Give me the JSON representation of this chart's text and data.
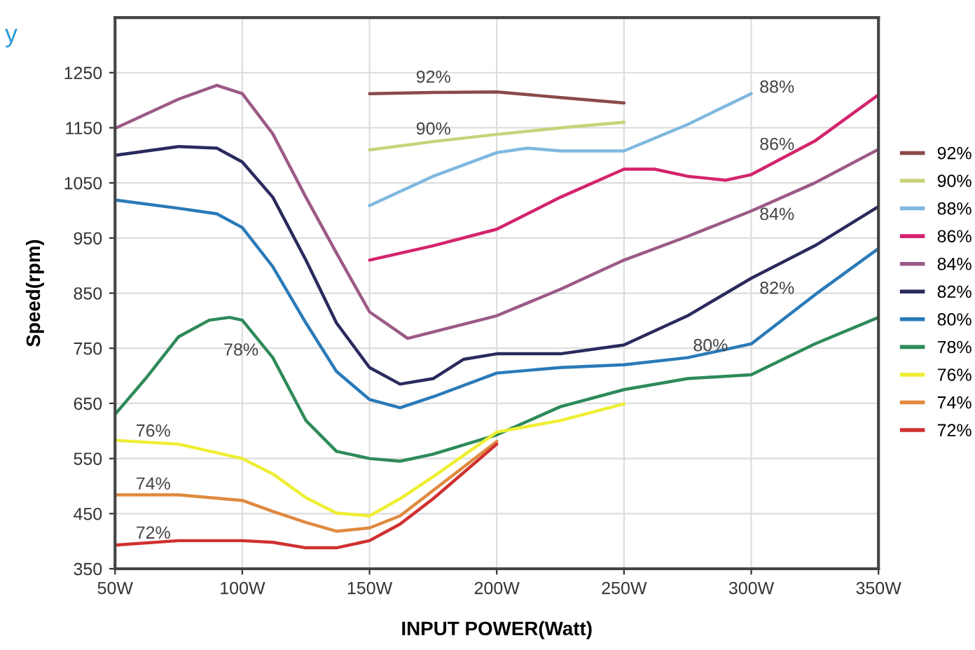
{
  "chart_data": {
    "type": "line",
    "xlabel": "INPUT POWER(Watt)",
    "ylabel": "Speed(rpm)",
    "xlim": [
      50,
      350
    ],
    "ylim": [
      350,
      1350
    ],
    "xticks": [
      {
        "value": 50,
        "label": "50W"
      },
      {
        "value": 100,
        "label": "100W"
      },
      {
        "value": 150,
        "label": "150W"
      },
      {
        "value": 200,
        "label": "200W"
      },
      {
        "value": 250,
        "label": "250W"
      },
      {
        "value": 300,
        "label": "300W"
      },
      {
        "value": 350,
        "label": "350W"
      }
    ],
    "yticks": [
      350,
      450,
      550,
      650,
      750,
      850,
      950,
      1050,
      1150,
      1250
    ],
    "grid": true,
    "legend": "right",
    "marker": "none",
    "line_style": "solid",
    "series": [
      {
        "name": "92%",
        "color": "#8b4a4a",
        "x": [
          150,
          175,
          200,
          225,
          250
        ],
        "values": [
          1212,
          1214,
          1215,
          1205,
          1195
        ]
      },
      {
        "name": "90%",
        "color": "#c8d27a",
        "x": [
          150,
          175,
          200,
          225,
          250
        ],
        "values": [
          1110,
          1125,
          1138,
          1150,
          1160
        ]
      },
      {
        "name": "88%",
        "color": "#7fb8e0",
        "x": [
          150,
          175,
          200,
          212,
          225,
          250,
          275,
          300
        ],
        "values": [
          1009,
          1062,
          1105,
          1113,
          1108,
          1108,
          1156,
          1212
        ]
      },
      {
        "name": "86%",
        "color": "#d4246e",
        "x": [
          150,
          175,
          200,
          225,
          250,
          262,
          275,
          290,
          300,
          325,
          350
        ],
        "values": [
          910,
          936,
          966,
          1024,
          1075,
          1075,
          1062,
          1055,
          1065,
          1126,
          1210
        ]
      },
      {
        "name": "84%",
        "color": "#9c5a86",
        "x": [
          50,
          75,
          90,
          100,
          112,
          125,
          137,
          150,
          165,
          200,
          225,
          250,
          275,
          300,
          325,
          350
        ],
        "values": [
          1149,
          1202,
          1227,
          1212,
          1139,
          1024,
          923,
          816,
          768,
          809,
          857,
          910,
          953,
          999,
          1050,
          1111
        ]
      },
      {
        "name": "82%",
        "color": "#2a2a5e",
        "x": [
          50,
          75,
          90,
          100,
          112,
          125,
          137,
          150,
          162,
          175,
          187,
          200,
          225,
          250,
          275,
          300,
          325,
          350
        ],
        "values": [
          1100,
          1116,
          1113,
          1088,
          1024,
          910,
          796,
          715,
          685,
          695,
          730,
          740,
          740,
          756,
          809,
          877,
          936,
          1007
        ]
      },
      {
        "name": "80%",
        "color": "#2a7ab8",
        "x": [
          50,
          75,
          90,
          100,
          112,
          125,
          137,
          150,
          162,
          175,
          200,
          225,
          250,
          275,
          300,
          325,
          350
        ],
        "values": [
          1019,
          1004,
          994,
          969,
          898,
          796,
          708,
          657,
          642,
          662,
          705,
          715,
          720,
          733,
          758,
          847,
          931
        ]
      },
      {
        "name": "78%",
        "color": "#2e8a5a",
        "x": [
          50,
          62,
          75,
          87,
          95,
          100,
          112,
          125,
          137,
          150,
          162,
          175,
          200,
          225,
          250,
          275,
          300,
          325,
          350
        ],
        "values": [
          630,
          695,
          771,
          801,
          806,
          801,
          733,
          619,
          563,
          550,
          545,
          558,
          593,
          644,
          675,
          695,
          702,
          758,
          806
        ]
      },
      {
        "name": "76%",
        "color": "#eeee33",
        "x": [
          50,
          75,
          100,
          112,
          125,
          137,
          150,
          162,
          175,
          200,
          225,
          250
        ],
        "values": [
          583,
          576,
          550,
          522,
          479,
          451,
          446,
          477,
          517,
          598,
          619,
          649
        ]
      },
      {
        "name": "74%",
        "color": "#e08a40",
        "x": [
          50,
          75,
          100,
          112,
          125,
          137,
          150,
          162,
          175,
          200
        ],
        "values": [
          484,
          484,
          474,
          454,
          434,
          418,
          424,
          446,
          492,
          581
        ]
      },
      {
        "name": "72%",
        "color": "#d03030",
        "x": [
          50,
          75,
          100,
          112,
          125,
          137,
          150,
          162,
          175,
          200
        ],
        "values": [
          393,
          401,
          401,
          398,
          388,
          388,
          401,
          431,
          477,
          576
        ]
      }
    ],
    "annotations": [
      "y",
      "92%",
      "90%",
      "88%",
      "86%",
      "84%",
      "82%",
      "80%",
      "78%",
      "76%",
      "74%",
      "72%"
    ]
  }
}
